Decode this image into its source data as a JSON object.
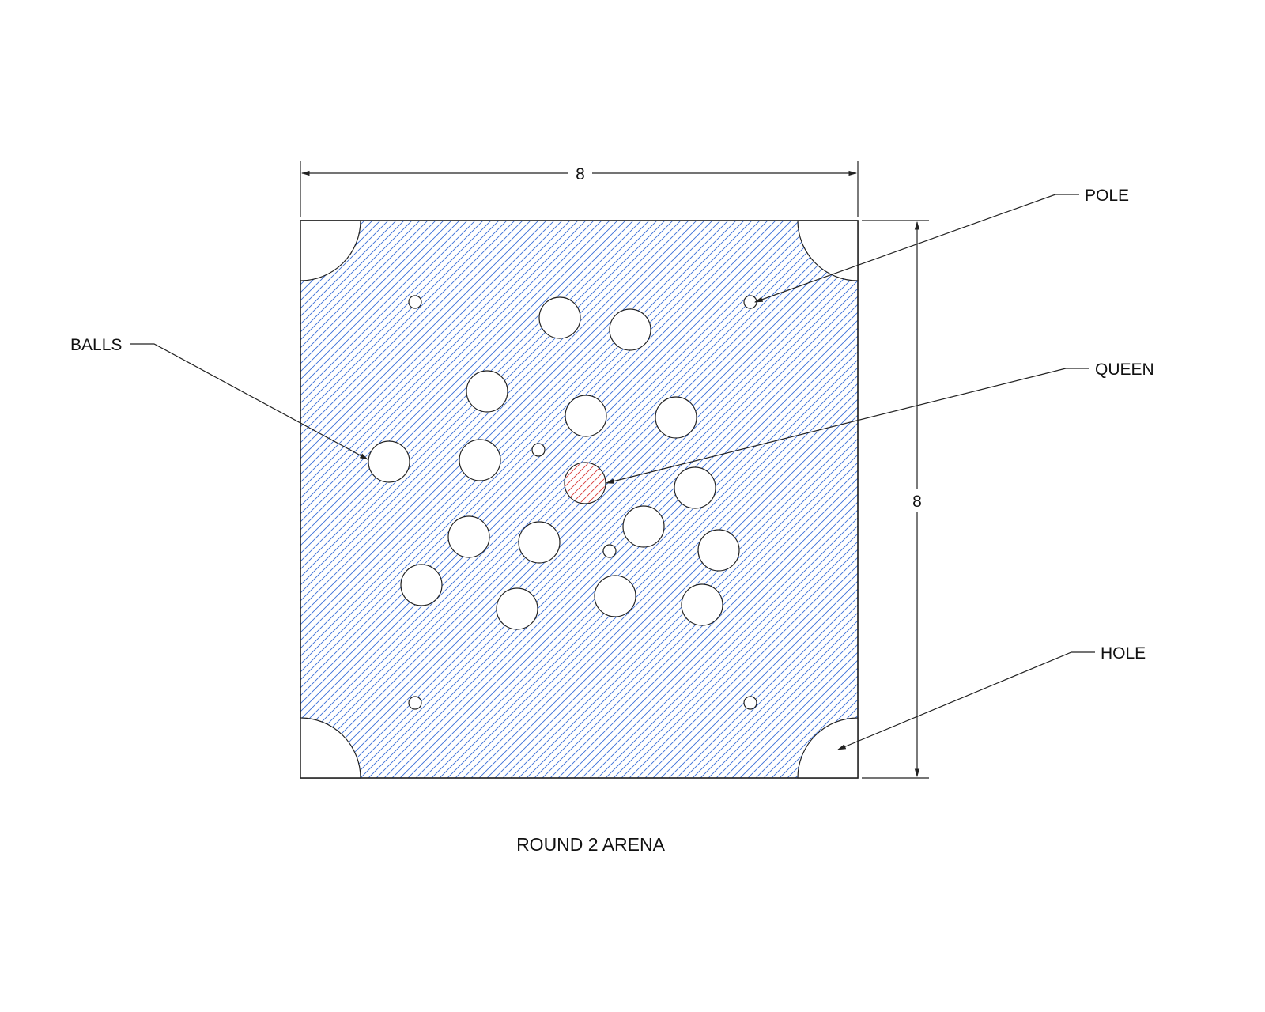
{
  "title": "ROUND 2 ARENA",
  "dimensions": {
    "width_value": "8",
    "height_value": "8"
  },
  "labels": {
    "pole": "POLE",
    "balls": "BALLS",
    "queen": "QUEEN",
    "hole": "HOLE"
  },
  "colors": {
    "hatch": "#3a6fd8",
    "queen": "#d83a3a",
    "line": "#222222"
  }
}
